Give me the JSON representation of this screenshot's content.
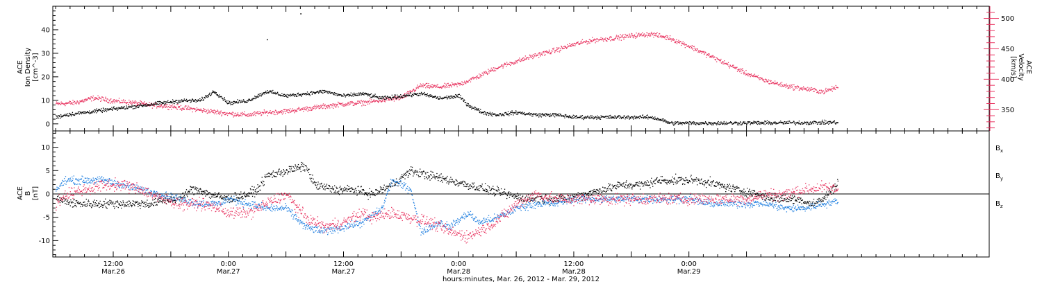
{
  "colors": {
    "black": "#000000",
    "red": "#e8325f",
    "blue": "#1f7fe0"
  },
  "chart_data": [
    {
      "type": "scatter",
      "panel": "top",
      "ylabel_left": [
        "ACE",
        "Ion Density",
        "[cm^-3]"
      ],
      "ylabel_right": [
        "ACE",
        "Velocity",
        "[km/s]"
      ],
      "left_ylim": [
        -3,
        50
      ],
      "left_yticks": [
        0,
        10,
        20,
        30,
        40
      ],
      "right_ylim": [
        315,
        520
      ],
      "right_yticks": [
        350,
        400,
        450,
        500
      ],
      "series": [
        {
          "name": "Ion Density",
          "axis": "left",
          "color": "#000000",
          "noise": 1.2,
          "points": [
            [
              0,
              3
            ],
            [
              2,
              4
            ],
            [
              6,
              5
            ],
            [
              10,
              6
            ],
            [
              14,
              7
            ],
            [
              18,
              8
            ],
            [
              22,
              9
            ],
            [
              26,
              10
            ],
            [
              30,
              10
            ],
            [
              33,
              14
            ],
            [
              36,
              9
            ],
            [
              40,
              10
            ],
            [
              44,
              14
            ],
            [
              48,
              12
            ],
            [
              52,
              13
            ],
            [
              56,
              14
            ],
            [
              60,
              12
            ],
            [
              64,
              13
            ],
            [
              68,
              11
            ],
            [
              72,
              12
            ],
            [
              76,
              13
            ],
            [
              80,
              11
            ],
            [
              84,
              12
            ],
            [
              86,
              8
            ],
            [
              89,
              5
            ],
            [
              92,
              4
            ],
            [
              96,
              5
            ],
            [
              100,
              4
            ],
            [
              104,
              4
            ],
            [
              108,
              3
            ],
            [
              112,
              3
            ],
            [
              116,
              3
            ],
            [
              120,
              3
            ],
            [
              124,
              3
            ],
            [
              126,
              2
            ],
            [
              128,
              0.5
            ],
            [
              134,
              0.5
            ],
            [
              140,
              0.5
            ],
            [
              146,
              0.6
            ],
            [
              152,
              0.6
            ],
            [
              158,
              0.7
            ],
            [
              163,
              0.8
            ]
          ],
          "outliers": [
            [
              44,
              36
            ],
            [
              51,
              47
            ]
          ]
        },
        {
          "name": "Velocity",
          "axis": "right",
          "color": "#e8325f",
          "noise": 6,
          "points": [
            [
              0,
              360
            ],
            [
              4,
              362
            ],
            [
              8,
              370
            ],
            [
              12,
              365
            ],
            [
              16,
              362
            ],
            [
              20,
              358
            ],
            [
              24,
              356
            ],
            [
              28,
              352
            ],
            [
              32,
              348
            ],
            [
              36,
              344
            ],
            [
              40,
              342
            ],
            [
              44,
              346
            ],
            [
              48,
              348
            ],
            [
              52,
              352
            ],
            [
              56,
              356
            ],
            [
              60,
              360
            ],
            [
              64,
              362
            ],
            [
              68,
              366
            ],
            [
              72,
              370
            ],
            [
              76,
              390
            ],
            [
              80,
              388
            ],
            [
              84,
              392
            ],
            [
              88,
              405
            ],
            [
              92,
              420
            ],
            [
              96,
              430
            ],
            [
              100,
              440
            ],
            [
              104,
              448
            ],
            [
              108,
              458
            ],
            [
              112,
              465
            ],
            [
              116,
              468
            ],
            [
              120,
              472
            ],
            [
              124,
              475
            ],
            [
              128,
              468
            ],
            [
              132,
              455
            ],
            [
              136,
              440
            ],
            [
              140,
              425
            ],
            [
              144,
              410
            ],
            [
              148,
              398
            ],
            [
              152,
              390
            ],
            [
              156,
              385
            ],
            [
              160,
              380
            ],
            [
              163,
              388
            ]
          ]
        }
      ]
    },
    {
      "type": "scatter",
      "panel": "bottom",
      "ylabel_left": [
        "ACE",
        "B",
        "[nT]"
      ],
      "ylim": [
        -13.5,
        13.5
      ],
      "yticks": [
        -10,
        -5,
        0,
        5,
        10
      ],
      "zero_line": true,
      "series": [
        {
          "name": "Bx",
          "sub": "x",
          "color": "#000000",
          "noise": 1.4,
          "points": [
            [
              0,
              -1
            ],
            [
              4,
              -2
            ],
            [
              8,
              -2
            ],
            [
              12,
              -2
            ],
            [
              16,
              -2
            ],
            [
              20,
              -2
            ],
            [
              24,
              -1
            ],
            [
              26,
              -1
            ],
            [
              28,
              1
            ],
            [
              30,
              1
            ],
            [
              32,
              0
            ],
            [
              36,
              -1
            ],
            [
              40,
              0
            ],
            [
              42,
              1
            ],
            [
              44,
              4
            ],
            [
              48,
              5
            ],
            [
              52,
              6
            ],
            [
              54,
              2
            ],
            [
              58,
              1
            ],
            [
              62,
              1
            ],
            [
              66,
              0
            ],
            [
              70,
              2
            ],
            [
              74,
              5
            ],
            [
              78,
              4
            ],
            [
              82,
              3
            ],
            [
              86,
              2
            ],
            [
              90,
              1
            ],
            [
              94,
              0
            ],
            [
              98,
              -1
            ],
            [
              102,
              -1
            ],
            [
              106,
              -1
            ],
            [
              110,
              0
            ],
            [
              114,
              1
            ],
            [
              118,
              2
            ],
            [
              122,
              2
            ],
            [
              126,
              3
            ],
            [
              130,
              3
            ],
            [
              134,
              3
            ],
            [
              138,
              2
            ],
            [
              142,
              1
            ],
            [
              146,
              0
            ],
            [
              150,
              -1
            ],
            [
              154,
              -1
            ],
            [
              158,
              -2
            ],
            [
              160,
              -1
            ],
            [
              163,
              2.5
            ]
          ]
        },
        {
          "name": "By",
          "sub": "y",
          "color": "#1f7fe0",
          "noise": 1.2,
          "points": [
            [
              0,
              1
            ],
            [
              2,
              3
            ],
            [
              6,
              3
            ],
            [
              10,
              3
            ],
            [
              14,
              2
            ],
            [
              18,
              1
            ],
            [
              22,
              0
            ],
            [
              26,
              -1
            ],
            [
              30,
              -2
            ],
            [
              34,
              -2
            ],
            [
              36,
              -1
            ],
            [
              40,
              -2
            ],
            [
              44,
              -3
            ],
            [
              48,
              -3
            ],
            [
              52,
              -7
            ],
            [
              56,
              -8
            ],
            [
              60,
              -7
            ],
            [
              64,
              -6
            ],
            [
              68,
              -3
            ],
            [
              70,
              3
            ],
            [
              74,
              1
            ],
            [
              76,
              -8
            ],
            [
              80,
              -6
            ],
            [
              82,
              -7
            ],
            [
              86,
              -4
            ],
            [
              88,
              -6
            ],
            [
              92,
              -5
            ],
            [
              96,
              -3
            ],
            [
              100,
              -2
            ],
            [
              104,
              -2
            ],
            [
              108,
              -1
            ],
            [
              112,
              -1
            ],
            [
              116,
              -1
            ],
            [
              120,
              -1
            ],
            [
              124,
              -1
            ],
            [
              128,
              -1
            ],
            [
              132,
              -1
            ],
            [
              136,
              -2
            ],
            [
              140,
              -2
            ],
            [
              144,
              -2
            ],
            [
              148,
              -2
            ],
            [
              152,
              -3
            ],
            [
              156,
              -3
            ],
            [
              160,
              -2
            ],
            [
              163,
              -1.5
            ]
          ]
        },
        {
          "name": "Bz",
          "sub": "z",
          "color": "#e8325f",
          "noise": 1.8,
          "points": [
            [
              0,
              -2
            ],
            [
              2,
              0
            ],
            [
              6,
              1
            ],
            [
              10,
              2
            ],
            [
              14,
              2
            ],
            [
              18,
              1
            ],
            [
              22,
              -1
            ],
            [
              26,
              -2
            ],
            [
              30,
              -2
            ],
            [
              34,
              -3
            ],
            [
              36,
              -4
            ],
            [
              40,
              -4
            ],
            [
              44,
              -2
            ],
            [
              48,
              0
            ],
            [
              52,
              -5
            ],
            [
              56,
              -7
            ],
            [
              60,
              -6
            ],
            [
              64,
              -4
            ],
            [
              66,
              -5
            ],
            [
              70,
              -4
            ],
            [
              74,
              -5
            ],
            [
              78,
              -6
            ],
            [
              82,
              -8
            ],
            [
              86,
              -9
            ],
            [
              90,
              -7
            ],
            [
              94,
              -4
            ],
            [
              96,
              -2
            ],
            [
              100,
              0
            ],
            [
              104,
              -1
            ],
            [
              108,
              -1
            ],
            [
              112,
              -1
            ],
            [
              116,
              -1
            ],
            [
              120,
              -1
            ],
            [
              124,
              -1
            ],
            [
              128,
              -1
            ],
            [
              132,
              -1
            ],
            [
              136,
              -1
            ],
            [
              140,
              -1
            ],
            [
              144,
              -1
            ],
            [
              148,
              0
            ],
            [
              152,
              0
            ],
            [
              156,
              1
            ],
            [
              160,
              1.5
            ],
            [
              163,
              1
            ]
          ]
        }
      ]
    }
  ],
  "x_axis": {
    "xlim": [
      -0.6,
      194.6
    ],
    "major_ticks": [
      12,
      24,
      36,
      48,
      60,
      72,
      84,
      96,
      108,
      120,
      132,
      144
    ],
    "minor_step": 3,
    "labeled_ticks": [
      {
        "x": 12,
        "time": "12:00",
        "date": "Mar.26"
      },
      {
        "x": 36,
        "time": "0:00",
        "date": "Mar.27"
      },
      {
        "x": 60,
        "time": "12:00",
        "date": "Mar.27"
      },
      {
        "x": 84,
        "time": "0:00",
        "date": "Mar.28"
      },
      {
        "x": 108,
        "time": "12:00",
        "date": "Mar.28"
      },
      {
        "x": 132,
        "time": "0:00",
        "date": "Mar.29"
      }
    ],
    "xlabel": "hours:minutes, Mar. 26, 2012 - Mar. 29, 2012"
  }
}
